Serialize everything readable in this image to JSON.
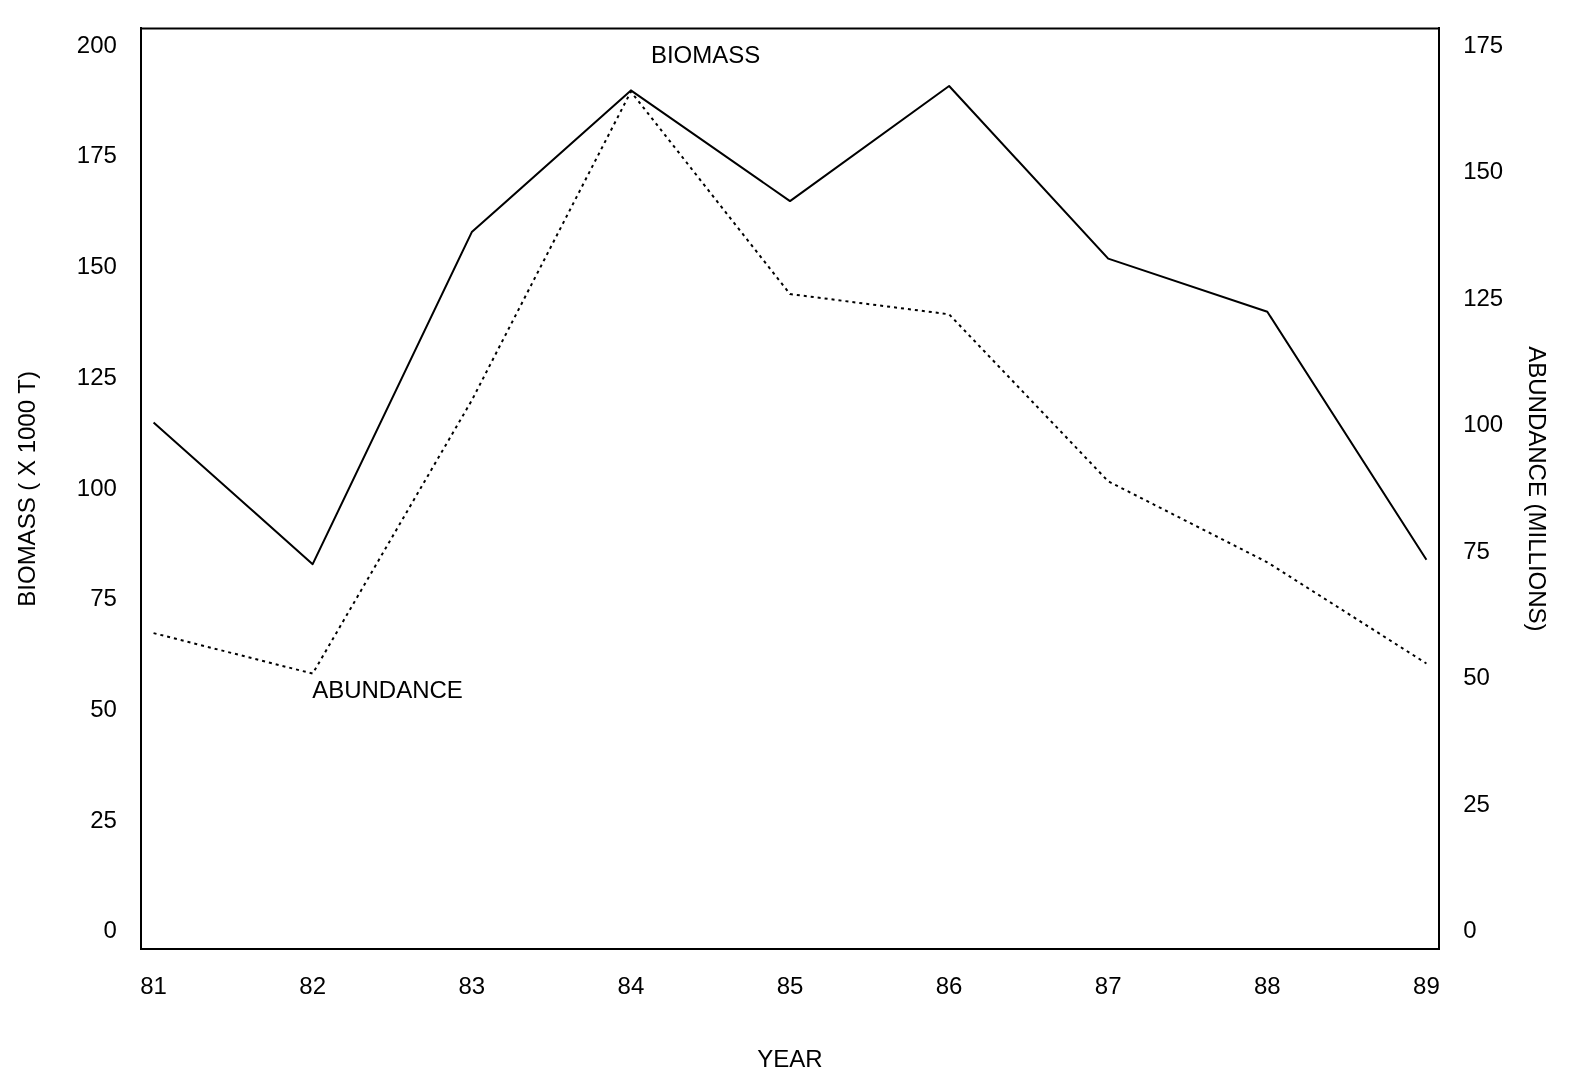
{
  "chart_data": {
    "type": "line",
    "xlabel": "YEAR",
    "ylabel": "BIOMASS ( X 1000 T)",
    "y2label": "ABUNDANCE (MILLIONS)",
    "x": [
      81,
      82,
      83,
      84,
      85,
      86,
      87,
      88,
      89
    ],
    "series": [
      {
        "color": "#000000",
        "line_style": "solid",
        "values": [
          115,
          83,
          158,
          190,
          165,
          191,
          152,
          140,
          84
        ]
      },
      {
        "color": "#000000",
        "line_style": "dotted",
        "axis": "y2",
        "values": [
          59,
          51,
          105,
          166,
          126,
          122,
          89,
          73,
          53
        ]
      }
    ],
    "xlim": [
      80.92,
      89.08
    ],
    "xticks": [
      81,
      82,
      83,
      84,
      85,
      86,
      87,
      88,
      89
    ],
    "ylim": [
      -4,
      204
    ],
    "yticks": [
      0,
      25,
      50,
      75,
      100,
      125,
      150,
      175,
      200
    ],
    "y2lim": [
      -3.5,
      178.5
    ],
    "y2ticks": [
      0,
      25,
      50,
      75,
      100,
      125,
      150,
      175
    ],
    "annotations": [
      "BIOMASS",
      "ABUNDANCE"
    ],
    "marker": "none",
    "grid": false,
    "legend": false
  }
}
